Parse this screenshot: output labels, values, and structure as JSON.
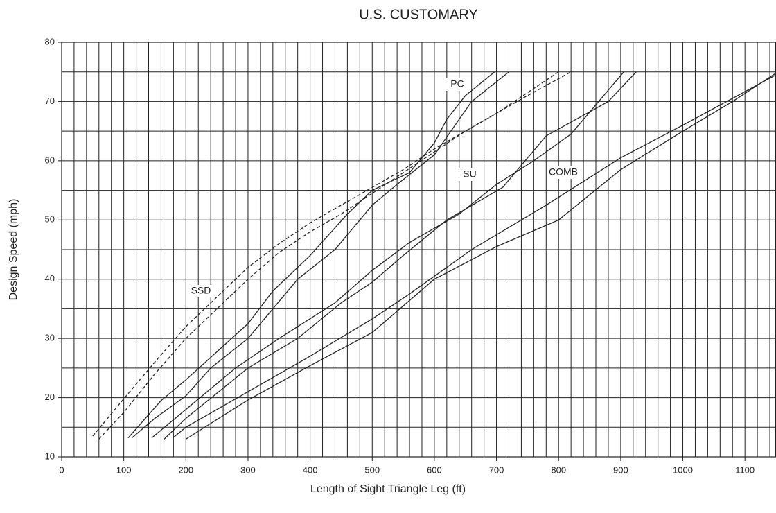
{
  "chart_data": {
    "type": "line",
    "title": "U.S. CUSTOMARY",
    "x_label": "Length of Sight Triangle Leg (ft)",
    "y_label": "Design Speed (mph)",
    "xlim": [
      0,
      1150
    ],
    "ylim": [
      10,
      80
    ],
    "xticks": [
      0,
      100,
      200,
      300,
      400,
      500,
      600,
      700,
      800,
      900,
      1000,
      1100
    ],
    "yticks": [
      10,
      20,
      30,
      40,
      50,
      60,
      70,
      80
    ],
    "xgrid": [
      0,
      20,
      40,
      60,
      80,
      100,
      120,
      140,
      160,
      180,
      200,
      220,
      240,
      260,
      280,
      300,
      320,
      340,
      360,
      380,
      400,
      420,
      440,
      460,
      480,
      500,
      520,
      540,
      560,
      580,
      600,
      620,
      640,
      660,
      680,
      700,
      720,
      740,
      760,
      780,
      800,
      820,
      840,
      860,
      880,
      900,
      920,
      940,
      960,
      980,
      1000,
      1020,
      1040,
      1060,
      1080,
      1100,
      1120,
      1140
    ],
    "ygrid": [
      10,
      15,
      20,
      25,
      30,
      35,
      40,
      45,
      50,
      55,
      60,
      65,
      70,
      75,
      80
    ],
    "grid": true,
    "annotations": [
      "PC",
      "SSD",
      "SU",
      "COMB"
    ],
    "series": [
      {
        "color": "#222",
        "style": "dashed",
        "x": [
          50,
          100,
          150,
          200,
          250,
          300,
          350,
          400,
          450,
          500,
          550,
          600,
          650,
          700,
          750,
          800
        ],
        "values": [
          13.5,
          19.8,
          26,
          32,
          37,
          42,
          46,
          49.5,
          52.5,
          55.5,
          58.5,
          62,
          65,
          68,
          71.5,
          75
        ]
      },
      {
        "color": "#222",
        "style": "dashed",
        "x": [
          60,
          100,
          150,
          200,
          250,
          300,
          350,
          400,
          450,
          500,
          550,
          600,
          650,
          700,
          750,
          820
        ],
        "values": [
          13,
          17.5,
          24,
          30,
          35,
          40,
          44.5,
          48,
          51,
          54.5,
          58,
          61.5,
          65,
          68,
          71,
          75
        ]
      },
      {
        "color": "#222",
        "style": "solid",
        "x": [
          107,
          160,
          200,
          300,
          340,
          400,
          460,
          500,
          560,
          600,
          620,
          650,
          697
        ],
        "values": [
          13.2,
          19.5,
          23,
          32.5,
          38,
          44,
          51,
          55,
          58,
          63,
          67,
          71,
          75
        ]
      },
      {
        "color": "#222",
        "style": "solid",
        "x": [
          113,
          150,
          200,
          240,
          300,
          340,
          380,
          440,
          500,
          540,
          600,
          660,
          720
        ],
        "values": [
          13.2,
          16.5,
          20.3,
          25,
          30,
          35,
          40,
          45,
          52.5,
          56,
          61,
          70,
          75
        ]
      },
      {
        "color": "#222",
        "style": "solid",
        "x": [
          145,
          200,
          280,
          350,
          440,
          500,
          560,
          640,
          700,
          760,
          820,
          905
        ],
        "values": [
          13.2,
          18,
          25,
          30,
          36,
          41.5,
          46.2,
          51,
          56,
          60,
          64.5,
          75
        ]
      },
      {
        "color": "#222",
        "style": "solid",
        "x": [
          165,
          200,
          300,
          380,
          450,
          500,
          550,
          620,
          710,
          780,
          880,
          925
        ],
        "values": [
          13,
          16.5,
          25,
          30,
          36,
          39.5,
          44,
          50,
          55.5,
          64.2,
          70,
          75
        ]
      },
      {
        "color": "#222",
        "style": "solid",
        "x": [
          180,
          200,
          300,
          400,
          500,
          560,
          660,
          780,
          900,
          1000,
          1150
        ],
        "values": [
          13.3,
          15,
          21,
          27,
          33.3,
          37.5,
          45,
          52.5,
          60.5,
          66,
          74.5
        ]
      },
      {
        "color": "#222",
        "style": "solid",
        "x": [
          200,
          300,
          400,
          500,
          600,
          700,
          800,
          900,
          1000,
          1080,
          1150
        ],
        "values": [
          13,
          19.6,
          25.4,
          31,
          40,
          45.5,
          50,
          58.5,
          65,
          70,
          74.8
        ]
      }
    ]
  }
}
